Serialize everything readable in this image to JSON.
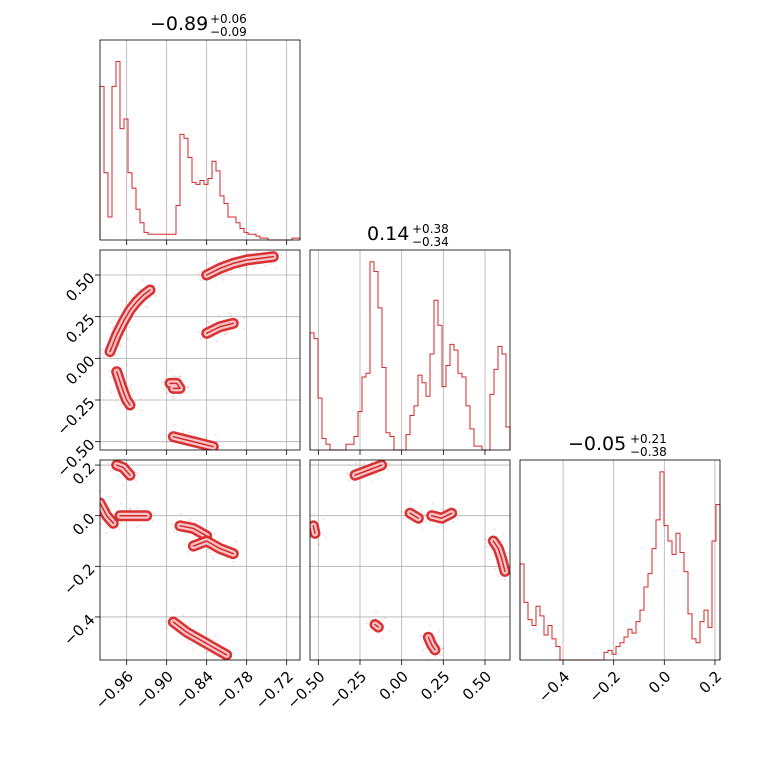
{
  "chart_data": {
    "type": "corner",
    "color": "#d62728",
    "grid": true,
    "parameters": [
      {
        "range": [
          -1.0,
          -0.7
        ],
        "ticks": [
          -0.96,
          -0.9,
          -0.84,
          -0.78,
          -0.72
        ],
        "tick_labels": [
          "−0.96",
          "−0.90",
          "−0.84",
          "−0.78",
          "−0.72"
        ],
        "title": {
          "median": "−0.89",
          "plus": "+0.06",
          "minus": "−0.09"
        }
      },
      {
        "range": [
          -0.55,
          0.65
        ],
        "ticks": [
          -0.5,
          -0.25,
          0.0,
          0.25,
          0.5
        ],
        "tick_labels": [
          "−0.50",
          "−0.25",
          "0.00",
          "0.25",
          "0.50"
        ],
        "title": {
          "median": "0.14",
          "plus": "+0.38",
          "minus": "−0.34"
        }
      },
      {
        "range": [
          -0.57,
          0.22
        ],
        "ticks": [
          -0.4,
          -0.2,
          0.0,
          0.2
        ],
        "tick_labels": [
          "−0.4",
          "−0.2",
          "0.0",
          "0.2"
        ],
        "title": {
          "median": "−0.05",
          "plus": "+0.21",
          "minus": "−0.38"
        }
      }
    ],
    "histograms": [
      {
        "parameter": 0,
        "counts": [
          0.8,
          0.35,
          0.12,
          0.8,
          0.93,
          0.58,
          0.63,
          0.35,
          0.27,
          0.16,
          0.09,
          0.04,
          0.03,
          0.03,
          0.03,
          0.03,
          0.03,
          0.03,
          0.03,
          0.18,
          0.55,
          0.53,
          0.43,
          0.3,
          0.29,
          0.31,
          0.29,
          0.32,
          0.41,
          0.36,
          0.23,
          0.19,
          0.12,
          0.12,
          0.09,
          0.06,
          0.04,
          0.03,
          0.03,
          0.02,
          0.01,
          0.01,
          0.0,
          0.0,
          0.0,
          0.0,
          0.0,
          0.0,
          0.01,
          0.01
        ]
      },
      {
        "parameter": 1,
        "counts": [
          0.61,
          0.58,
          0.27,
          0.06,
          0.03,
          0.0,
          0.0,
          0.0,
          0.0,
          0.03,
          0.03,
          0.07,
          0.2,
          0.38,
          0.4,
          0.98,
          0.93,
          0.74,
          0.43,
          0.09,
          0.07,
          0.0,
          0.0,
          0.0,
          0.08,
          0.18,
          0.23,
          0.39,
          0.35,
          0.28,
          0.5,
          0.78,
          0.65,
          0.33,
          0.44,
          0.55,
          0.52,
          0.4,
          0.38,
          0.23,
          0.11,
          0.02,
          0.02,
          0.0,
          0.0,
          0.29,
          0.42,
          0.54,
          0.5,
          0.12
        ]
      },
      {
        "parameter": 2,
        "counts": [
          0.5,
          0.3,
          0.21,
          0.18,
          0.28,
          0.23,
          0.13,
          0.18,
          0.11,
          0.07,
          0.0,
          0.0,
          0.0,
          0.0,
          0.0,
          0.0,
          0.0,
          0.0,
          0.0,
          0.0,
          0.0,
          0.04,
          0.05,
          0.03,
          0.07,
          0.09,
          0.12,
          0.16,
          0.14,
          0.2,
          0.26,
          0.38,
          0.45,
          0.58,
          0.73,
          0.98,
          0.7,
          0.62,
          0.55,
          0.66,
          0.56,
          0.46,
          0.24,
          0.11,
          0.09,
          0.2,
          0.26,
          0.17,
          0.62,
          0.81
        ]
      }
    ],
    "scatter_2d": [
      {
        "x_param": 0,
        "y_param": 1,
        "clusters": [
          {
            "x": [
              -0.985,
              -0.975,
              -0.965,
              -0.955,
              -0.945,
              -0.935,
              -0.925
            ],
            "y": [
              0.04,
              0.14,
              0.22,
              0.29,
              0.34,
              0.38,
              0.41
            ]
          },
          {
            "x": [
              -0.84,
              -0.82,
              -0.8,
              -0.78,
              -0.76,
              -0.74
            ],
            "y": [
              0.5,
              0.54,
              0.57,
              0.59,
              0.6,
              0.61
            ]
          },
          {
            "x": [
              -0.84,
              -0.83,
              -0.82,
              -0.81,
              -0.8
            ],
            "y": [
              0.15,
              0.17,
              0.19,
              0.2,
              0.21
            ]
          },
          {
            "x": [
              -0.975,
              -0.97,
              -0.965,
              -0.96,
              -0.955
            ],
            "y": [
              -0.08,
              -0.14,
              -0.2,
              -0.25,
              -0.28
            ]
          },
          {
            "x": [
              -0.895,
              -0.885,
              -0.88,
              -0.89
            ],
            "y": [
              -0.15,
              -0.15,
              -0.18,
              -0.18
            ]
          },
          {
            "x": [
              -0.89,
              -0.87,
              -0.85,
              -0.83
            ],
            "y": [
              -0.47,
              -0.49,
              -0.51,
              -0.53
            ]
          }
        ]
      },
      {
        "x_param": 0,
        "y_param": 2,
        "clusters": [
          {
            "x": [
              -0.975,
              -0.965,
              -0.955
            ],
            "y": [
              0.2,
              0.19,
              0.16
            ]
          },
          {
            "x": [
              -1.0,
              -0.99,
              -0.98
            ],
            "y": [
              0.05,
              0.0,
              -0.03
            ]
          },
          {
            "x": [
              -0.97,
              -0.95,
              -0.93
            ],
            "y": [
              0.0,
              0.0,
              0.0
            ]
          },
          {
            "x": [
              -0.88,
              -0.86,
              -0.84
            ],
            "y": [
              -0.04,
              -0.05,
              -0.08
            ]
          },
          {
            "x": [
              -0.86,
              -0.84,
              -0.82,
              -0.8
            ],
            "y": [
              -0.12,
              -0.1,
              -0.13,
              -0.15
            ]
          },
          {
            "x": [
              -0.89,
              -0.87,
              -0.85,
              -0.83,
              -0.81
            ],
            "y": [
              -0.42,
              -0.46,
              -0.49,
              -0.52,
              -0.55
            ]
          }
        ]
      },
      {
        "x_param": 1,
        "y_param": 2,
        "clusters": [
          {
            "x": [
              -0.28,
              -0.2,
              -0.12
            ],
            "y": [
              0.16,
              0.18,
              0.2
            ]
          },
          {
            "x": [
              -0.53,
              -0.52
            ],
            "y": [
              -0.04,
              -0.07
            ]
          },
          {
            "x": [
              0.05,
              0.1
            ],
            "y": [
              0.01,
              -0.01
            ]
          },
          {
            "x": [
              0.18,
              0.24,
              0.3
            ],
            "y": [
              0.0,
              -0.01,
              0.01
            ]
          },
          {
            "x": [
              0.55,
              0.58,
              0.6,
              0.62
            ],
            "y": [
              -0.1,
              -0.13,
              -0.17,
              -0.22
            ]
          },
          {
            "x": [
              -0.16,
              -0.14
            ],
            "y": [
              -0.43,
              -0.44
            ]
          },
          {
            "x": [
              0.16,
              0.18,
              0.2
            ],
            "y": [
              -0.48,
              -0.51,
              -0.53
            ]
          }
        ]
      }
    ]
  }
}
